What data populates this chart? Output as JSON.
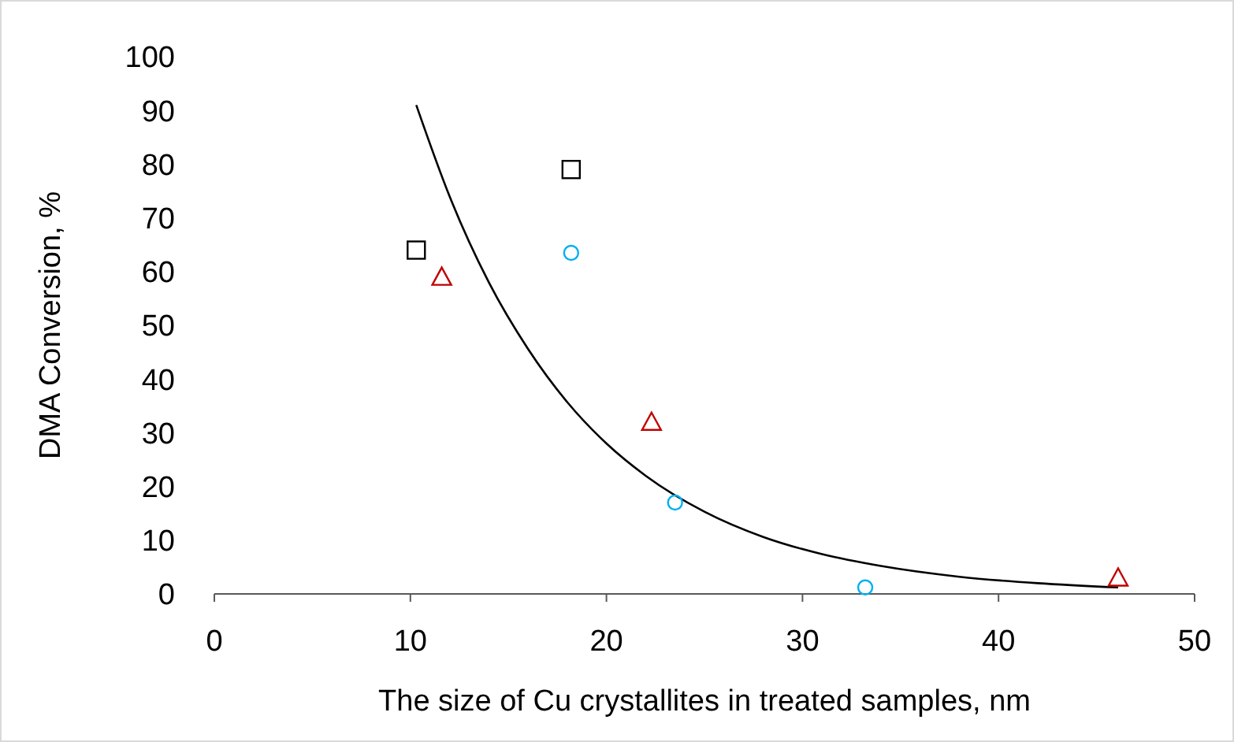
{
  "chart_data": {
    "type": "scatter",
    "xlabel": "The size of Cu crystallites in treated samples, nm",
    "ylabel": "DMA Conversion, %",
    "xlim": [
      0,
      50
    ],
    "xticks": [
      0,
      10,
      20,
      30,
      40,
      50
    ],
    "ylim": [
      0,
      100
    ],
    "yticks": [
      0,
      10,
      20,
      30,
      40,
      50,
      60,
      70,
      80,
      90,
      100
    ],
    "grid": false,
    "series": [
      {
        "marker": "square",
        "color": "#000000",
        "x": [
          10.3,
          18.2
        ],
        "values": [
          64,
          79
        ]
      },
      {
        "marker": "triangle",
        "color": "#c00000",
        "x": [
          11.6,
          22.3,
          46.1
        ],
        "values": [
          59,
          32,
          3
        ]
      },
      {
        "marker": "circle",
        "color": "#00b0f0",
        "x": [
          18.2,
          23.5,
          33.2
        ],
        "values": [
          63.5,
          17,
          1.2
        ]
      },
      {
        "type": "line",
        "marker": "none",
        "line_style": "solid",
        "color": "#000000",
        "x": [
          10.3,
          12,
          14,
          16,
          18,
          20,
          22,
          25,
          28,
          31,
          34,
          38,
          42,
          46.1
        ],
        "values": [
          91,
          74,
          58,
          45.6,
          35.7,
          28,
          22,
          15.3,
          10.6,
          7.4,
          5.2,
          3.2,
          2,
          1.2
        ]
      }
    ]
  }
}
